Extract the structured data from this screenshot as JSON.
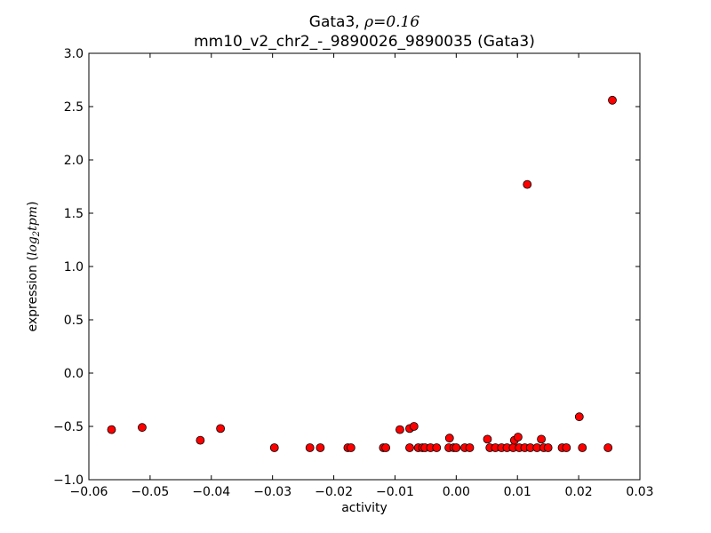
{
  "chart_data": {
    "type": "scatter",
    "title_line1_prefix": "Gata3, ",
    "title_line1_rho": "ρ",
    "title_line1_value": "=0.16",
    "title_line2": "mm10_v2_chr2_-_9890026_9890035 (Gata3)",
    "xlabel": "activity",
    "ylabel_prefix": "expression (",
    "ylabel_math": "log",
    "ylabel_sub": "2",
    "ylabel_math2": "tpm",
    "ylabel_suffix": ")",
    "xlim": [
      -0.06,
      0.03
    ],
    "ylim": [
      -1.0,
      3.0
    ],
    "xticks": [
      -0.06,
      -0.05,
      -0.04,
      -0.03,
      -0.02,
      -0.01,
      0.0,
      0.01,
      0.02,
      0.03
    ],
    "xtick_labels": [
      "−0.06",
      "−0.05",
      "−0.04",
      "−0.03",
      "−0.02",
      "−0.01",
      "0.00",
      "0.01",
      "0.02",
      "0.03"
    ],
    "yticks": [
      -1.0,
      -0.5,
      0.0,
      0.5,
      1.0,
      1.5,
      2.0,
      2.5,
      3.0
    ],
    "ytick_labels": [
      "−1.0",
      "−0.5",
      "0.0",
      "0.5",
      "1.0",
      "1.5",
      "2.0",
      "2.5",
      "3.0"
    ],
    "marker_color": "#ff0000",
    "marker_edge": "#000000",
    "grid": false,
    "points": [
      {
        "x": -0.0563,
        "y": -0.53
      },
      {
        "x": -0.0513,
        "y": -0.51
      },
      {
        "x": -0.0418,
        "y": -0.63
      },
      {
        "x": -0.0385,
        "y": -0.52
      },
      {
        "x": -0.0297,
        "y": -0.7
      },
      {
        "x": -0.0239,
        "y": -0.7
      },
      {
        "x": -0.0222,
        "y": -0.7
      },
      {
        "x": -0.0177,
        "y": -0.7
      },
      {
        "x": -0.0172,
        "y": -0.7
      },
      {
        "x": -0.0119,
        "y": -0.7
      },
      {
        "x": -0.0115,
        "y": -0.7
      },
      {
        "x": -0.0092,
        "y": -0.53
      },
      {
        "x": -0.0076,
        "y": -0.52
      },
      {
        "x": -0.0069,
        "y": -0.5
      },
      {
        "x": -0.0076,
        "y": -0.7
      },
      {
        "x": -0.0062,
        "y": -0.7
      },
      {
        "x": -0.0055,
        "y": -0.7
      },
      {
        "x": -0.0051,
        "y": -0.7
      },
      {
        "x": -0.0042,
        "y": -0.7
      },
      {
        "x": -0.0032,
        "y": -0.7
      },
      {
        "x": -0.0011,
        "y": -0.61
      },
      {
        "x": -0.0012,
        "y": -0.7
      },
      {
        "x": -0.0004,
        "y": -0.7
      },
      {
        "x": 0.0,
        "y": -0.7
      },
      {
        "x": 0.0014,
        "y": -0.7
      },
      {
        "x": 0.0022,
        "y": -0.7
      },
      {
        "x": 0.0051,
        "y": -0.62
      },
      {
        "x": 0.0055,
        "y": -0.7
      },
      {
        "x": 0.0064,
        "y": -0.7
      },
      {
        "x": 0.0074,
        "y": -0.7
      },
      {
        "x": 0.0083,
        "y": -0.7
      },
      {
        "x": 0.0093,
        "y": -0.7
      },
      {
        "x": 0.0095,
        "y": -0.63
      },
      {
        "x": 0.0101,
        "y": -0.6
      },
      {
        "x": 0.0103,
        "y": -0.7
      },
      {
        "x": 0.0112,
        "y": -0.7
      },
      {
        "x": 0.0116,
        "y": 1.77
      },
      {
        "x": 0.0121,
        "y": -0.7
      },
      {
        "x": 0.0132,
        "y": -0.7
      },
      {
        "x": 0.0139,
        "y": -0.62
      },
      {
        "x": 0.0143,
        "y": -0.7
      },
      {
        "x": 0.015,
        "y": -0.7
      },
      {
        "x": 0.0173,
        "y": -0.7
      },
      {
        "x": 0.018,
        "y": -0.7
      },
      {
        "x": 0.0201,
        "y": -0.41
      },
      {
        "x": 0.0206,
        "y": -0.7
      },
      {
        "x": 0.0248,
        "y": -0.7
      },
      {
        "x": 0.0255,
        "y": 2.56
      }
    ]
  }
}
